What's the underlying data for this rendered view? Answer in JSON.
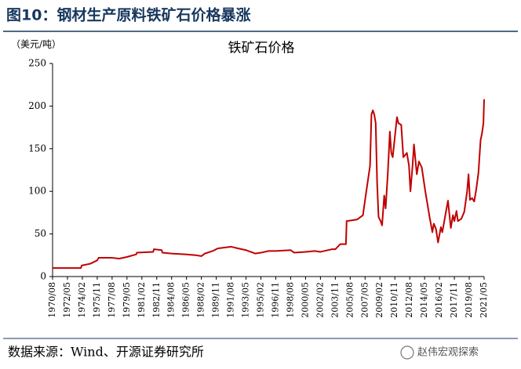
{
  "header": {
    "title": "图10：钢材生产原料铁矿石价格暴涨"
  },
  "footer": {
    "source": "数据来源：Wind、开源证券研究所",
    "watermark": "赵伟宏观探索"
  },
  "chart_data": {
    "type": "line",
    "title": "铁矿石价格",
    "y_label": "（美元/吨）",
    "color": "#c00000",
    "ylim": [
      0,
      250
    ],
    "yticks": [
      0,
      50,
      100,
      150,
      200,
      250
    ],
    "xlim": [
      "1970/08",
      "2021/05"
    ],
    "xticks": [
      "1970/08",
      "1972/05",
      "1974/02",
      "1975/11",
      "1977/08",
      "1979/05",
      "1981/02",
      "1982/11",
      "1984/08",
      "1986/05",
      "1988/02",
      "1989/11",
      "1991/08",
      "1993/05",
      "1995/02",
      "1996/11",
      "1998/08",
      "2000/05",
      "2002/02",
      "2003/11",
      "2005/08",
      "2007/05",
      "2009/02",
      "2010/11",
      "2012/08",
      "2014/05",
      "2016/02",
      "2017/11",
      "2019/08",
      "2021/05"
    ],
    "x": [
      "1970/08",
      "1973/12",
      "1974/01",
      "1975/01",
      "1975/11",
      "1976/01",
      "1977/08",
      "1978/06",
      "1979/05",
      "1980/06",
      "1980/07",
      "1982/06",
      "1982/07",
      "1983/06",
      "1983/07",
      "1984/08",
      "1986/05",
      "1987/06",
      "1988/02",
      "1988/07",
      "1989/06",
      "1990/01",
      "1991/08",
      "1992/06",
      "1993/05",
      "1994/06",
      "1995/02",
      "1996/01",
      "1996/11",
      "1998/08",
      "1999/01",
      "2000/05",
      "2001/06",
      "2002/02",
      "2003/06",
      "2003/11",
      "2004/06",
      "2005/02",
      "2005/03",
      "2006/06",
      "2007/02",
      "2007/05",
      "2007/12",
      "2008/02",
      "2008/04",
      "2008/06",
      "2008/08",
      "2008/10",
      "2008/12",
      "2009/03",
      "2009/05",
      "2009/08",
      "2009/10",
      "2010/01",
      "2010/04",
      "2010/06",
      "2010/08",
      "2011/02",
      "2011/04",
      "2011/08",
      "2011/11",
      "2012/01",
      "2012/04",
      "2012/07",
      "2012/09",
      "2012/12",
      "2013/02",
      "2013/06",
      "2013/09",
      "2014/01",
      "2014/06",
      "2014/09",
      "2014/12",
      "2015/04",
      "2015/06",
      "2015/09",
      "2015/12",
      "2016/04",
      "2016/06",
      "2016/12",
      "2017/02",
      "2017/06",
      "2017/09",
      "2017/11",
      "2018/02",
      "2018/04",
      "2018/09",
      "2019/01",
      "2019/05",
      "2019/07",
      "2019/09",
      "2019/12",
      "2020/03",
      "2020/06",
      "2020/09",
      "2020/12",
      "2021/02",
      "2021/04",
      "2021/05"
    ],
    "values": [
      10,
      10,
      13,
      15,
      19,
      22,
      22,
      21,
      23,
      26,
      28,
      29,
      32,
      31,
      28,
      27,
      26,
      25,
      24,
      27,
      30,
      33,
      35,
      33,
      31,
      27,
      28,
      30,
      30,
      31,
      28,
      29,
      30,
      29,
      32,
      32,
      38,
      38,
      65,
      67,
      72,
      90,
      130,
      190,
      195,
      190,
      180,
      110,
      70,
      65,
      60,
      95,
      80,
      120,
      170,
      145,
      140,
      187,
      180,
      178,
      140,
      142,
      145,
      130,
      100,
      130,
      155,
      120,
      135,
      128,
      100,
      85,
      70,
      52,
      62,
      56,
      40,
      58,
      52,
      80,
      89,
      57,
      72,
      65,
      77,
      65,
      68,
      76,
      100,
      120,
      90,
      92,
      88,
      103,
      122,
      160,
      168,
      180,
      208
    ]
  }
}
